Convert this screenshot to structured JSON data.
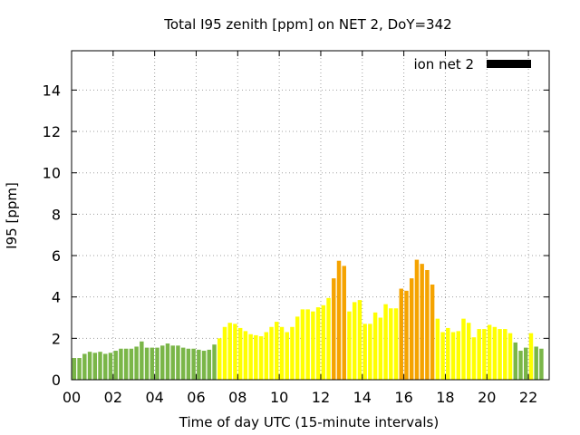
{
  "chart_data": {
    "type": "bar",
    "title": "Total I95 zenith [ppm] on NET 2, DoY=342",
    "xlabel": "Time of day UTC (15-minute intervals)",
    "ylabel": "I95 [ppm]",
    "xlim": [
      0,
      23
    ],
    "ylim": [
      0,
      15.9
    ],
    "x_ticks": [
      "00",
      "02",
      "04",
      "06",
      "08",
      "10",
      "12",
      "14",
      "16",
      "18",
      "20",
      "22"
    ],
    "y_ticks": [
      "0",
      "2",
      "4",
      "6",
      "8",
      "10",
      "12",
      "14"
    ],
    "grid": true,
    "legend": {
      "position": "top-right",
      "entries": [
        {
          "label": "ion net 2",
          "color": "#000000"
        }
      ]
    },
    "colors": {
      "green": "#7ab648",
      "yellow": "#ffff00",
      "orange": "#f5a300"
    },
    "interval_hours": 0.25,
    "values": [
      1.05,
      1.05,
      1.25,
      1.35,
      1.3,
      1.35,
      1.25,
      1.3,
      1.4,
      1.5,
      1.5,
      1.5,
      1.6,
      1.85,
      1.55,
      1.55,
      1.55,
      1.65,
      1.75,
      1.65,
      1.65,
      1.55,
      1.5,
      1.5,
      1.45,
      1.4,
      1.45,
      1.7,
      2.0,
      2.55,
      2.75,
      2.7,
      2.5,
      2.35,
      2.2,
      2.15,
      2.1,
      2.3,
      2.55,
      2.8,
      2.55,
      2.3,
      2.55,
      3.05,
      3.4,
      3.4,
      3.3,
      3.5,
      3.6,
      3.95,
      4.9,
      5.75,
      5.5,
      3.3,
      3.75,
      3.85,
      2.7,
      2.7,
      3.25,
      3.0,
      3.65,
      3.45,
      3.45,
      4.4,
      4.3,
      4.9,
      5.8,
      5.6,
      5.3,
      4.6,
      2.95,
      2.3,
      2.5,
      2.3,
      2.35,
      2.95,
      2.75,
      2.05,
      2.45,
      2.45,
      2.65,
      2.55,
      2.45,
      2.45,
      2.25,
      1.8,
      1.4,
      1.55,
      2.25,
      1.6,
      1.5
    ],
    "bar_colors": [
      "green",
      "green",
      "green",
      "green",
      "green",
      "green",
      "green",
      "green",
      "green",
      "green",
      "green",
      "green",
      "green",
      "green",
      "green",
      "green",
      "green",
      "green",
      "green",
      "green",
      "green",
      "green",
      "green",
      "green",
      "green",
      "green",
      "green",
      "green",
      "yellow",
      "yellow",
      "yellow",
      "yellow",
      "yellow",
      "yellow",
      "yellow",
      "yellow",
      "yellow",
      "yellow",
      "yellow",
      "yellow",
      "yellow",
      "yellow",
      "yellow",
      "yellow",
      "yellow",
      "yellow",
      "yellow",
      "yellow",
      "yellow",
      "yellow",
      "orange",
      "orange",
      "orange",
      "yellow",
      "yellow",
      "yellow",
      "yellow",
      "yellow",
      "yellow",
      "yellow",
      "yellow",
      "yellow",
      "yellow",
      "orange",
      "orange",
      "orange",
      "orange",
      "orange",
      "orange",
      "orange",
      "yellow",
      "yellow",
      "yellow",
      "yellow",
      "yellow",
      "yellow",
      "yellow",
      "yellow",
      "yellow",
      "yellow",
      "yellow",
      "yellow",
      "yellow",
      "yellow",
      "yellow",
      "green",
      "green",
      "green",
      "yellow",
      "green",
      "green"
    ]
  }
}
